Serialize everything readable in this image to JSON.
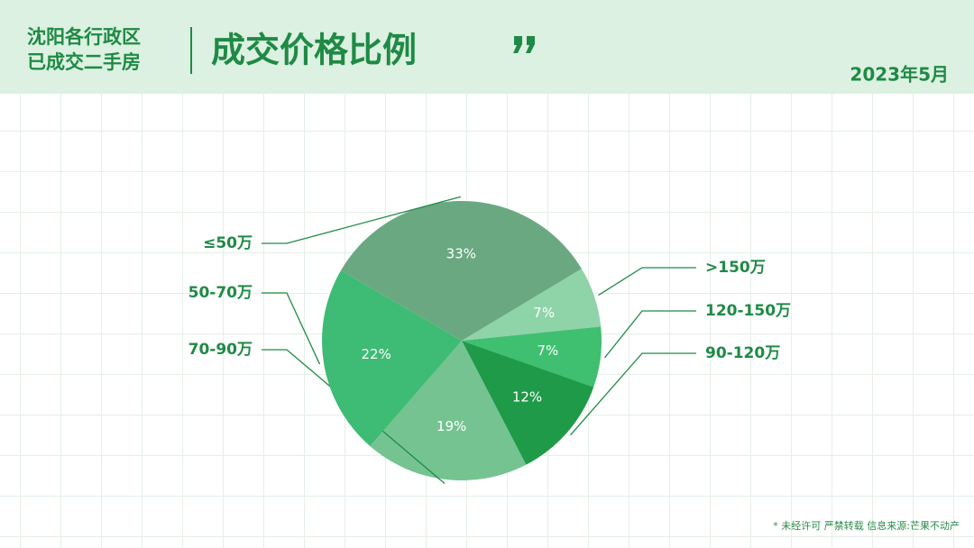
{
  "chart_data": {
    "type": "pie",
    "kicker": [
      "沈阳各行政区",
      "已成交二手房"
    ],
    "title": "成交价格比例",
    "date": "2023年5月",
    "categories": [
      ">150万",
      "120-150万",
      "90-120万",
      "70-90万",
      "50-70万",
      "≤50万"
    ],
    "values": [
      7,
      7,
      12,
      19,
      22,
      33
    ],
    "value_labels": [
      "7%",
      "7%",
      "12%",
      "19%",
      "22%",
      "33%"
    ],
    "colors": [
      "#8fd3a9",
      "#3fbf70",
      "#1f9a48",
      "#74c391",
      "#3ebb74",
      "#6aa882"
    ],
    "footnote": "* 未经许可 严禁转载 信息来源:芒果不动产"
  }
}
